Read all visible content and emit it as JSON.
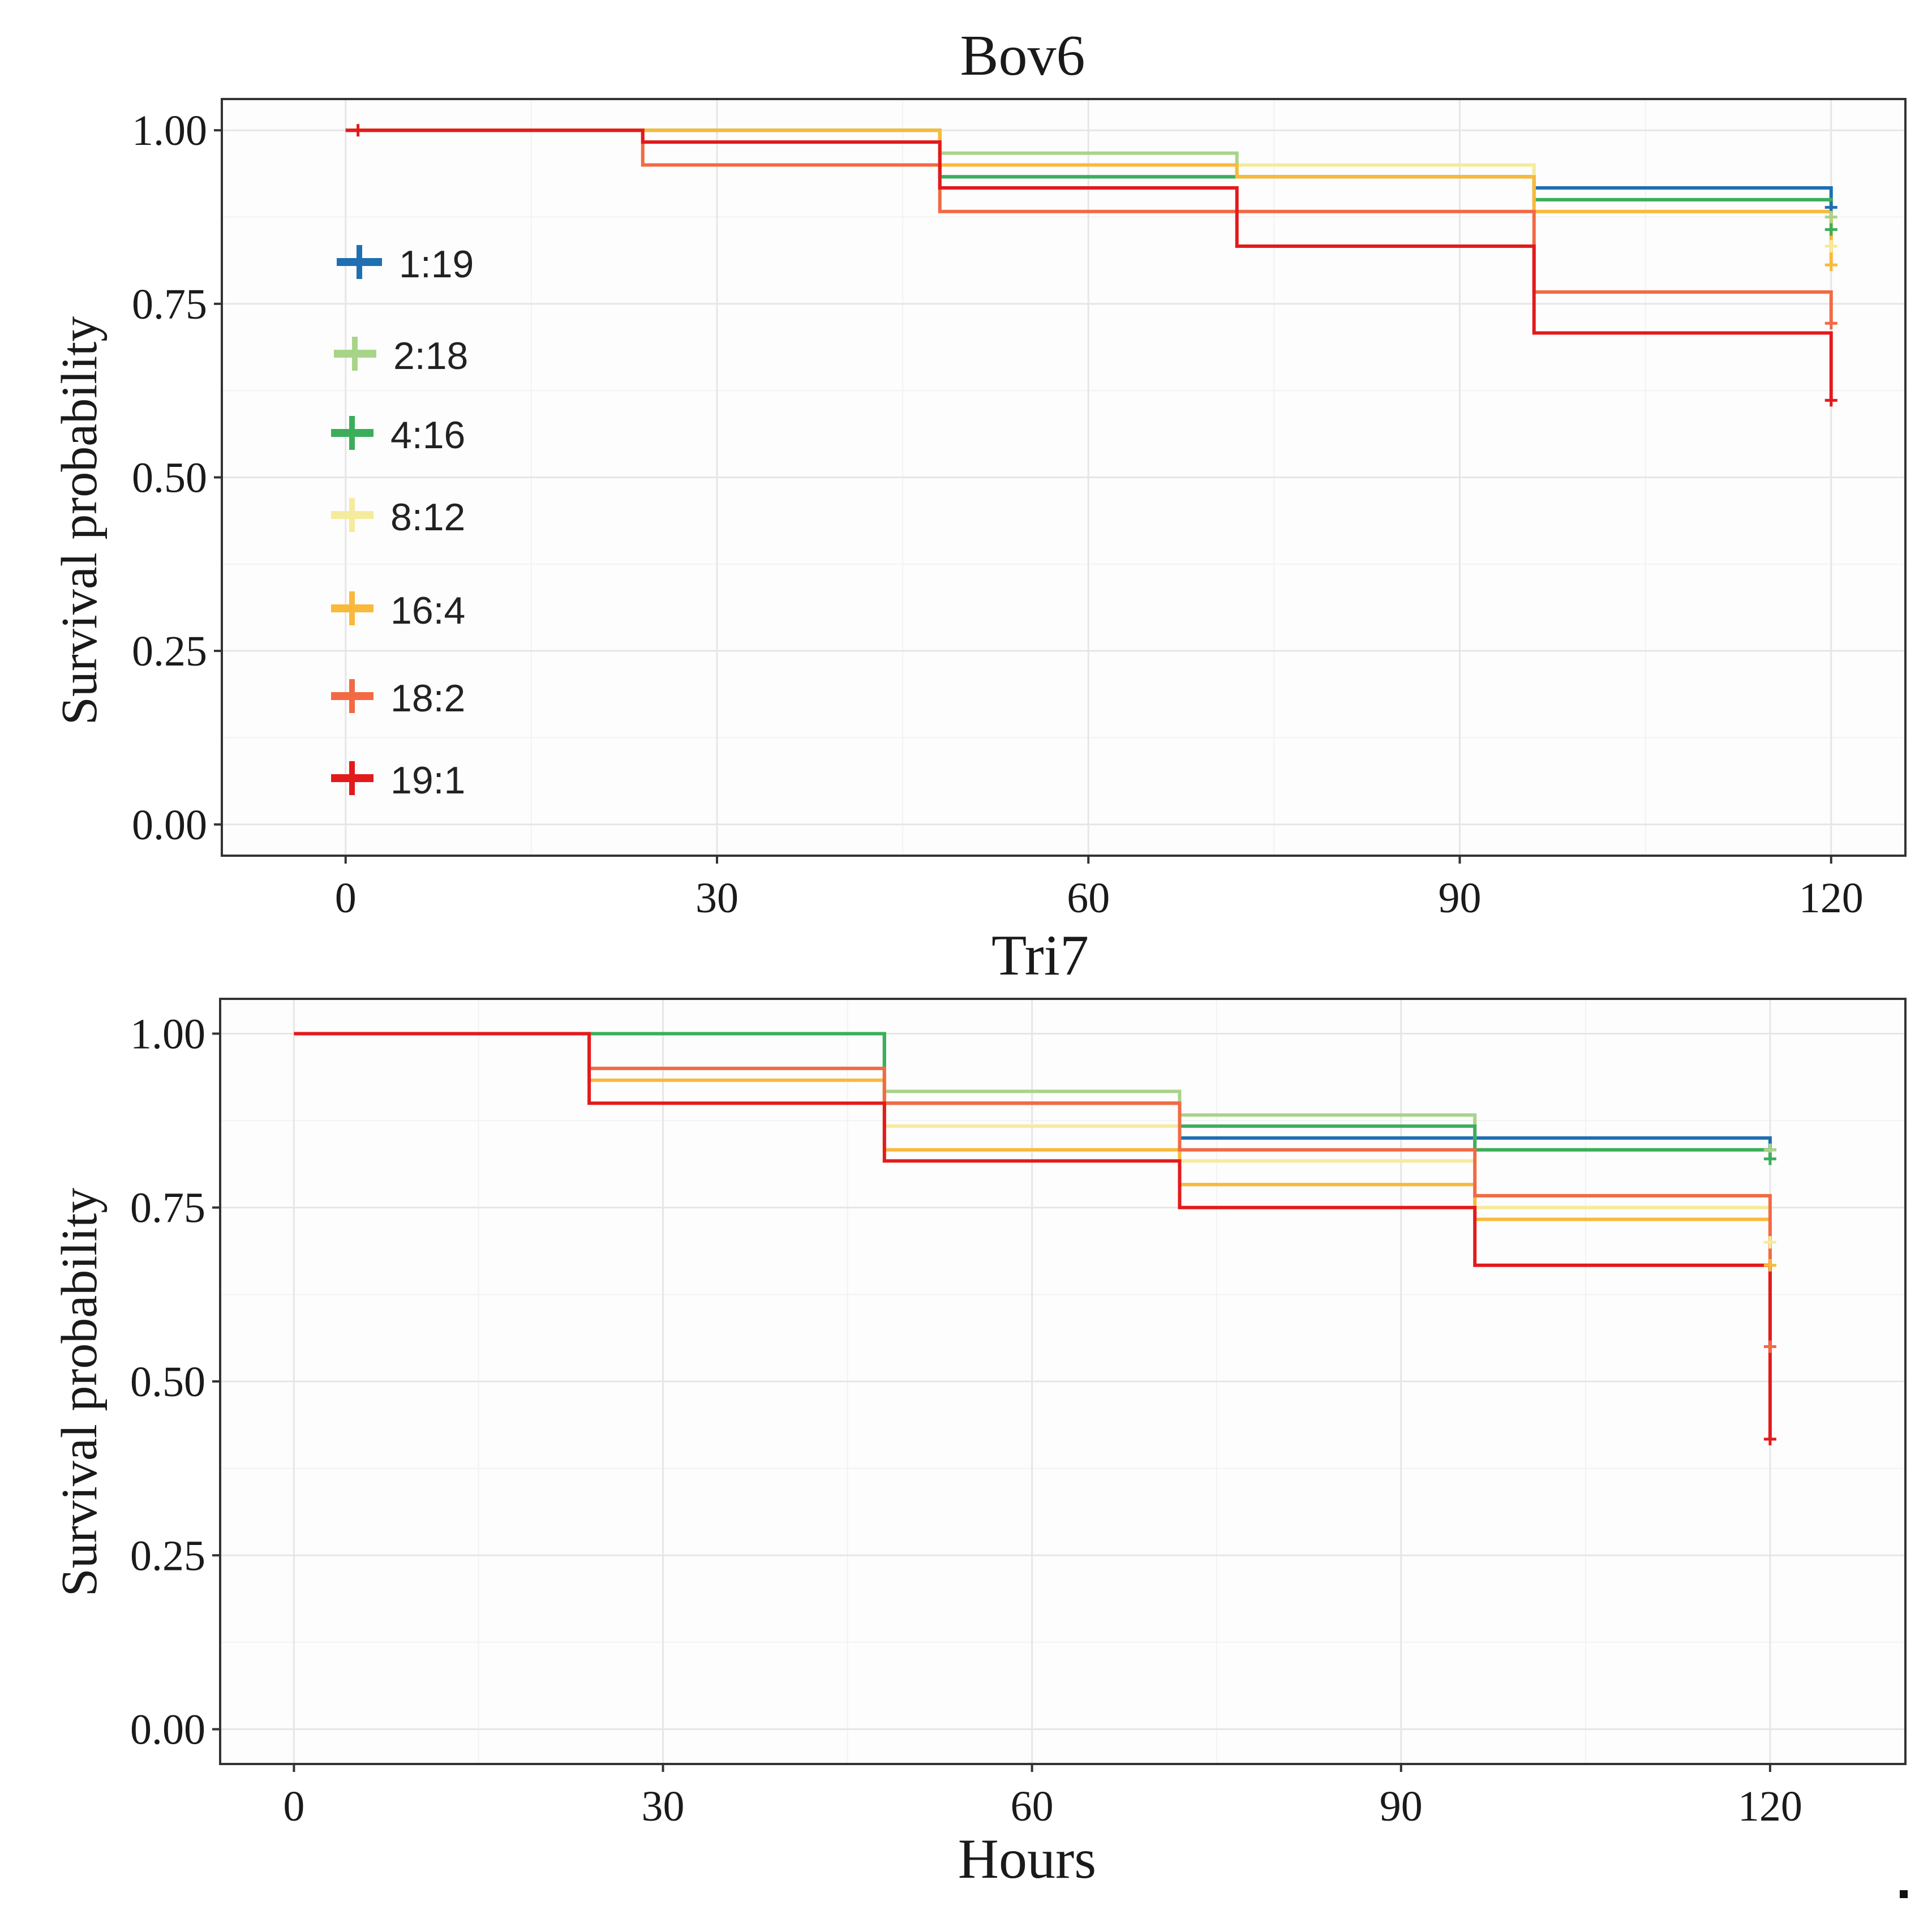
{
  "chart_data": [
    {
      "type": "line",
      "subtype": "kaplan-meier-step",
      "title": "Bov6",
      "xlabel": "",
      "ylabel": "Survival probability",
      "xlim": [
        -10,
        126
      ],
      "ylim": [
        -0.045,
        1.045
      ],
      "xticks": [
        0,
        30,
        60,
        90,
        120
      ],
      "xtick_labels": [
        "0",
        "30",
        "60",
        "90",
        "120"
      ],
      "yticks": [
        0,
        0.25,
        0.5,
        0.75,
        1
      ],
      "ytick_labels": [
        "0.00",
        "0.25",
        "0.50",
        "0.75",
        "1.00"
      ],
      "grid": true,
      "legend_position": "top-left inside",
      "series": [
        {
          "name": "1:19",
          "color": "#1f6fb2",
          "x": [
            0,
            24,
            48,
            72,
            96,
            120
          ],
          "y": [
            1.0,
            1.0,
            0.933,
            0.933,
            0.917,
            0.889
          ],
          "censor_x": [
            120
          ],
          "censor_y": [
            0.889
          ]
        },
        {
          "name": "2:18",
          "color": "#a8d48a",
          "x": [
            0,
            24,
            48,
            72,
            96,
            120
          ],
          "y": [
            1.0,
            1.0,
            0.967,
            0.933,
            0.9,
            0.875
          ],
          "censor_x": [
            120
          ],
          "censor_y": [
            0.875
          ]
        },
        {
          "name": "4:16",
          "color": "#3cae5a",
          "x": [
            0,
            24,
            48,
            72,
            96,
            120
          ],
          "y": [
            1.0,
            1.0,
            0.933,
            0.933,
            0.9,
            0.857
          ],
          "censor_x": [
            120
          ],
          "censor_y": [
            0.857
          ]
        },
        {
          "name": "8:12",
          "color": "#f5eb9c",
          "x": [
            0,
            24,
            48,
            72,
            96,
            120
          ],
          "y": [
            1.0,
            1.0,
            0.95,
            0.95,
            0.883,
            0.833
          ],
          "censor_x": [
            120
          ],
          "censor_y": [
            0.833
          ]
        },
        {
          "name": "16:4",
          "color": "#f9b93a",
          "x": [
            0,
            24,
            48,
            72,
            96,
            120
          ],
          "y": [
            1.0,
            1.0,
            0.95,
            0.933,
            0.883,
            0.806
          ],
          "censor_x": [
            120
          ],
          "censor_y": [
            0.806
          ]
        },
        {
          "name": "18:2",
          "color": "#f26a44",
          "x": [
            0,
            24,
            48,
            72,
            96,
            120
          ],
          "y": [
            1.0,
            0.95,
            0.883,
            0.883,
            0.767,
            0.722
          ],
          "censor_x": [
            120
          ],
          "censor_y": [
            0.722
          ]
        },
        {
          "name": "19:1",
          "color": "#e31a1c",
          "x": [
            0,
            24,
            48,
            72,
            96,
            120
          ],
          "y": [
            1.0,
            0.983,
            0.917,
            0.833,
            0.708,
            0.611
          ],
          "censor_x": [
            1,
            120
          ],
          "censor_y": [
            1.0,
            0.611
          ]
        }
      ]
    },
    {
      "type": "line",
      "subtype": "kaplan-meier-step",
      "title": "Tri7",
      "xlabel": "Hours",
      "ylabel": "Survival probability",
      "xlim": [
        -6,
        131
      ],
      "ylim": [
        -0.05,
        1.05
      ],
      "xticks": [
        0,
        30,
        60,
        90,
        120
      ],
      "xtick_labels": [
        "0",
        "30",
        "60",
        "90",
        "120"
      ],
      "yticks": [
        0,
        0.25,
        0.5,
        0.75,
        1
      ],
      "ytick_labels": [
        "0.00",
        "0.25",
        "0.50",
        "0.75",
        "1.00"
      ],
      "grid": true,
      "series": [
        {
          "name": "1:19",
          "color": "#1f6fb2",
          "x": [
            0,
            24,
            48,
            72,
            96,
            120
          ],
          "y": [
            1.0,
            1.0,
            0.9,
            0.85,
            0.85,
            0.833
          ],
          "censor_x": [
            120
          ],
          "censor_y": [
            0.833
          ]
        },
        {
          "name": "2:18",
          "color": "#a8d48a",
          "x": [
            0,
            24,
            48,
            72,
            96,
            120
          ],
          "y": [
            1.0,
            1.0,
            0.917,
            0.883,
            0.833,
            0.833
          ],
          "censor_x": [
            120
          ],
          "censor_y": [
            0.833
          ]
        },
        {
          "name": "4:16",
          "color": "#3cae5a",
          "x": [
            0,
            24,
            48,
            72,
            96,
            120
          ],
          "y": [
            1.0,
            1.0,
            0.9,
            0.867,
            0.833,
            0.82
          ],
          "censor_x": [
            120
          ],
          "censor_y": [
            0.82
          ]
        },
        {
          "name": "8:12",
          "color": "#f5eb9c",
          "x": [
            0,
            24,
            48,
            72,
            96,
            120
          ],
          "y": [
            1.0,
            0.95,
            0.867,
            0.817,
            0.75,
            0.7
          ],
          "censor_x": [
            120
          ],
          "censor_y": [
            0.7
          ]
        },
        {
          "name": "16:4",
          "color": "#f9b93a",
          "x": [
            0,
            24,
            48,
            72,
            96,
            120
          ],
          "y": [
            1.0,
            0.933,
            0.833,
            0.783,
            0.733,
            0.667
          ],
          "censor_x": [
            120
          ],
          "censor_y": [
            0.667
          ]
        },
        {
          "name": "18:2",
          "color": "#f26a44",
          "x": [
            0,
            24,
            48,
            72,
            96,
            120
          ],
          "y": [
            1.0,
            0.95,
            0.9,
            0.833,
            0.767,
            0.55
          ],
          "censor_x": [
            120
          ],
          "censor_y": [
            0.55
          ]
        },
        {
          "name": "19:1",
          "color": "#e31a1c",
          "x": [
            0,
            24,
            48,
            72,
            96,
            120
          ],
          "y": [
            1.0,
            0.9,
            0.817,
            0.75,
            0.667,
            0.417
          ],
          "censor_x": [
            120
          ],
          "censor_y": [
            0.417
          ]
        }
      ]
    }
  ]
}
